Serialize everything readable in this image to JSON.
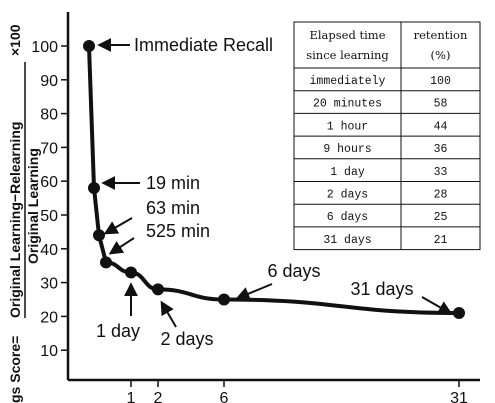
{
  "chart_data": {
    "type": "line",
    "x": [
      "0",
      "19 min",
      "63 min",
      "525 min",
      "1 day",
      "2 days",
      "6 days",
      "31 days"
    ],
    "x_days": [
      0,
      0.0132,
      0.0438,
      0.3646,
      1,
      2,
      6,
      31
    ],
    "values": [
      100,
      58,
      44,
      36,
      33,
      28,
      25,
      21
    ],
    "ylim": [
      0,
      100
    ],
    "yticks": [
      "10",
      "20",
      "30",
      "40",
      "50",
      "60",
      "70",
      "80",
      "90",
      "100"
    ],
    "xticks": [
      "1",
      "2",
      "6",
      "31"
    ],
    "ylabel_prefix": "gs Score=",
    "ylabel_numerator": "Original Learning−Relearning",
    "ylabel_denominator": "Original Learning",
    "ylabel_factor": "×100",
    "annotations": [
      "Immediate Recall",
      "19 min",
      "63 min",
      "525 min",
      "1 day",
      "2 days",
      "6 days",
      "31 days"
    ],
    "grid": false,
    "table": {
      "headers": [
        "Elapsed time since learning",
        "retention (%)"
      ],
      "header_lines": [
        [
          "Elapsed time",
          "since learning"
        ],
        [
          "retention",
          "(%)"
        ]
      ],
      "rows": [
        [
          "immediately",
          "100"
        ],
        [
          "20 minutes",
          "58"
        ],
        [
          "1 hour",
          "44"
        ],
        [
          "9 hours",
          "36"
        ],
        [
          "1 day",
          "33"
        ],
        [
          "2 days",
          "28"
        ],
        [
          "6 days",
          "25"
        ],
        [
          "31 days",
          "21"
        ]
      ]
    }
  }
}
